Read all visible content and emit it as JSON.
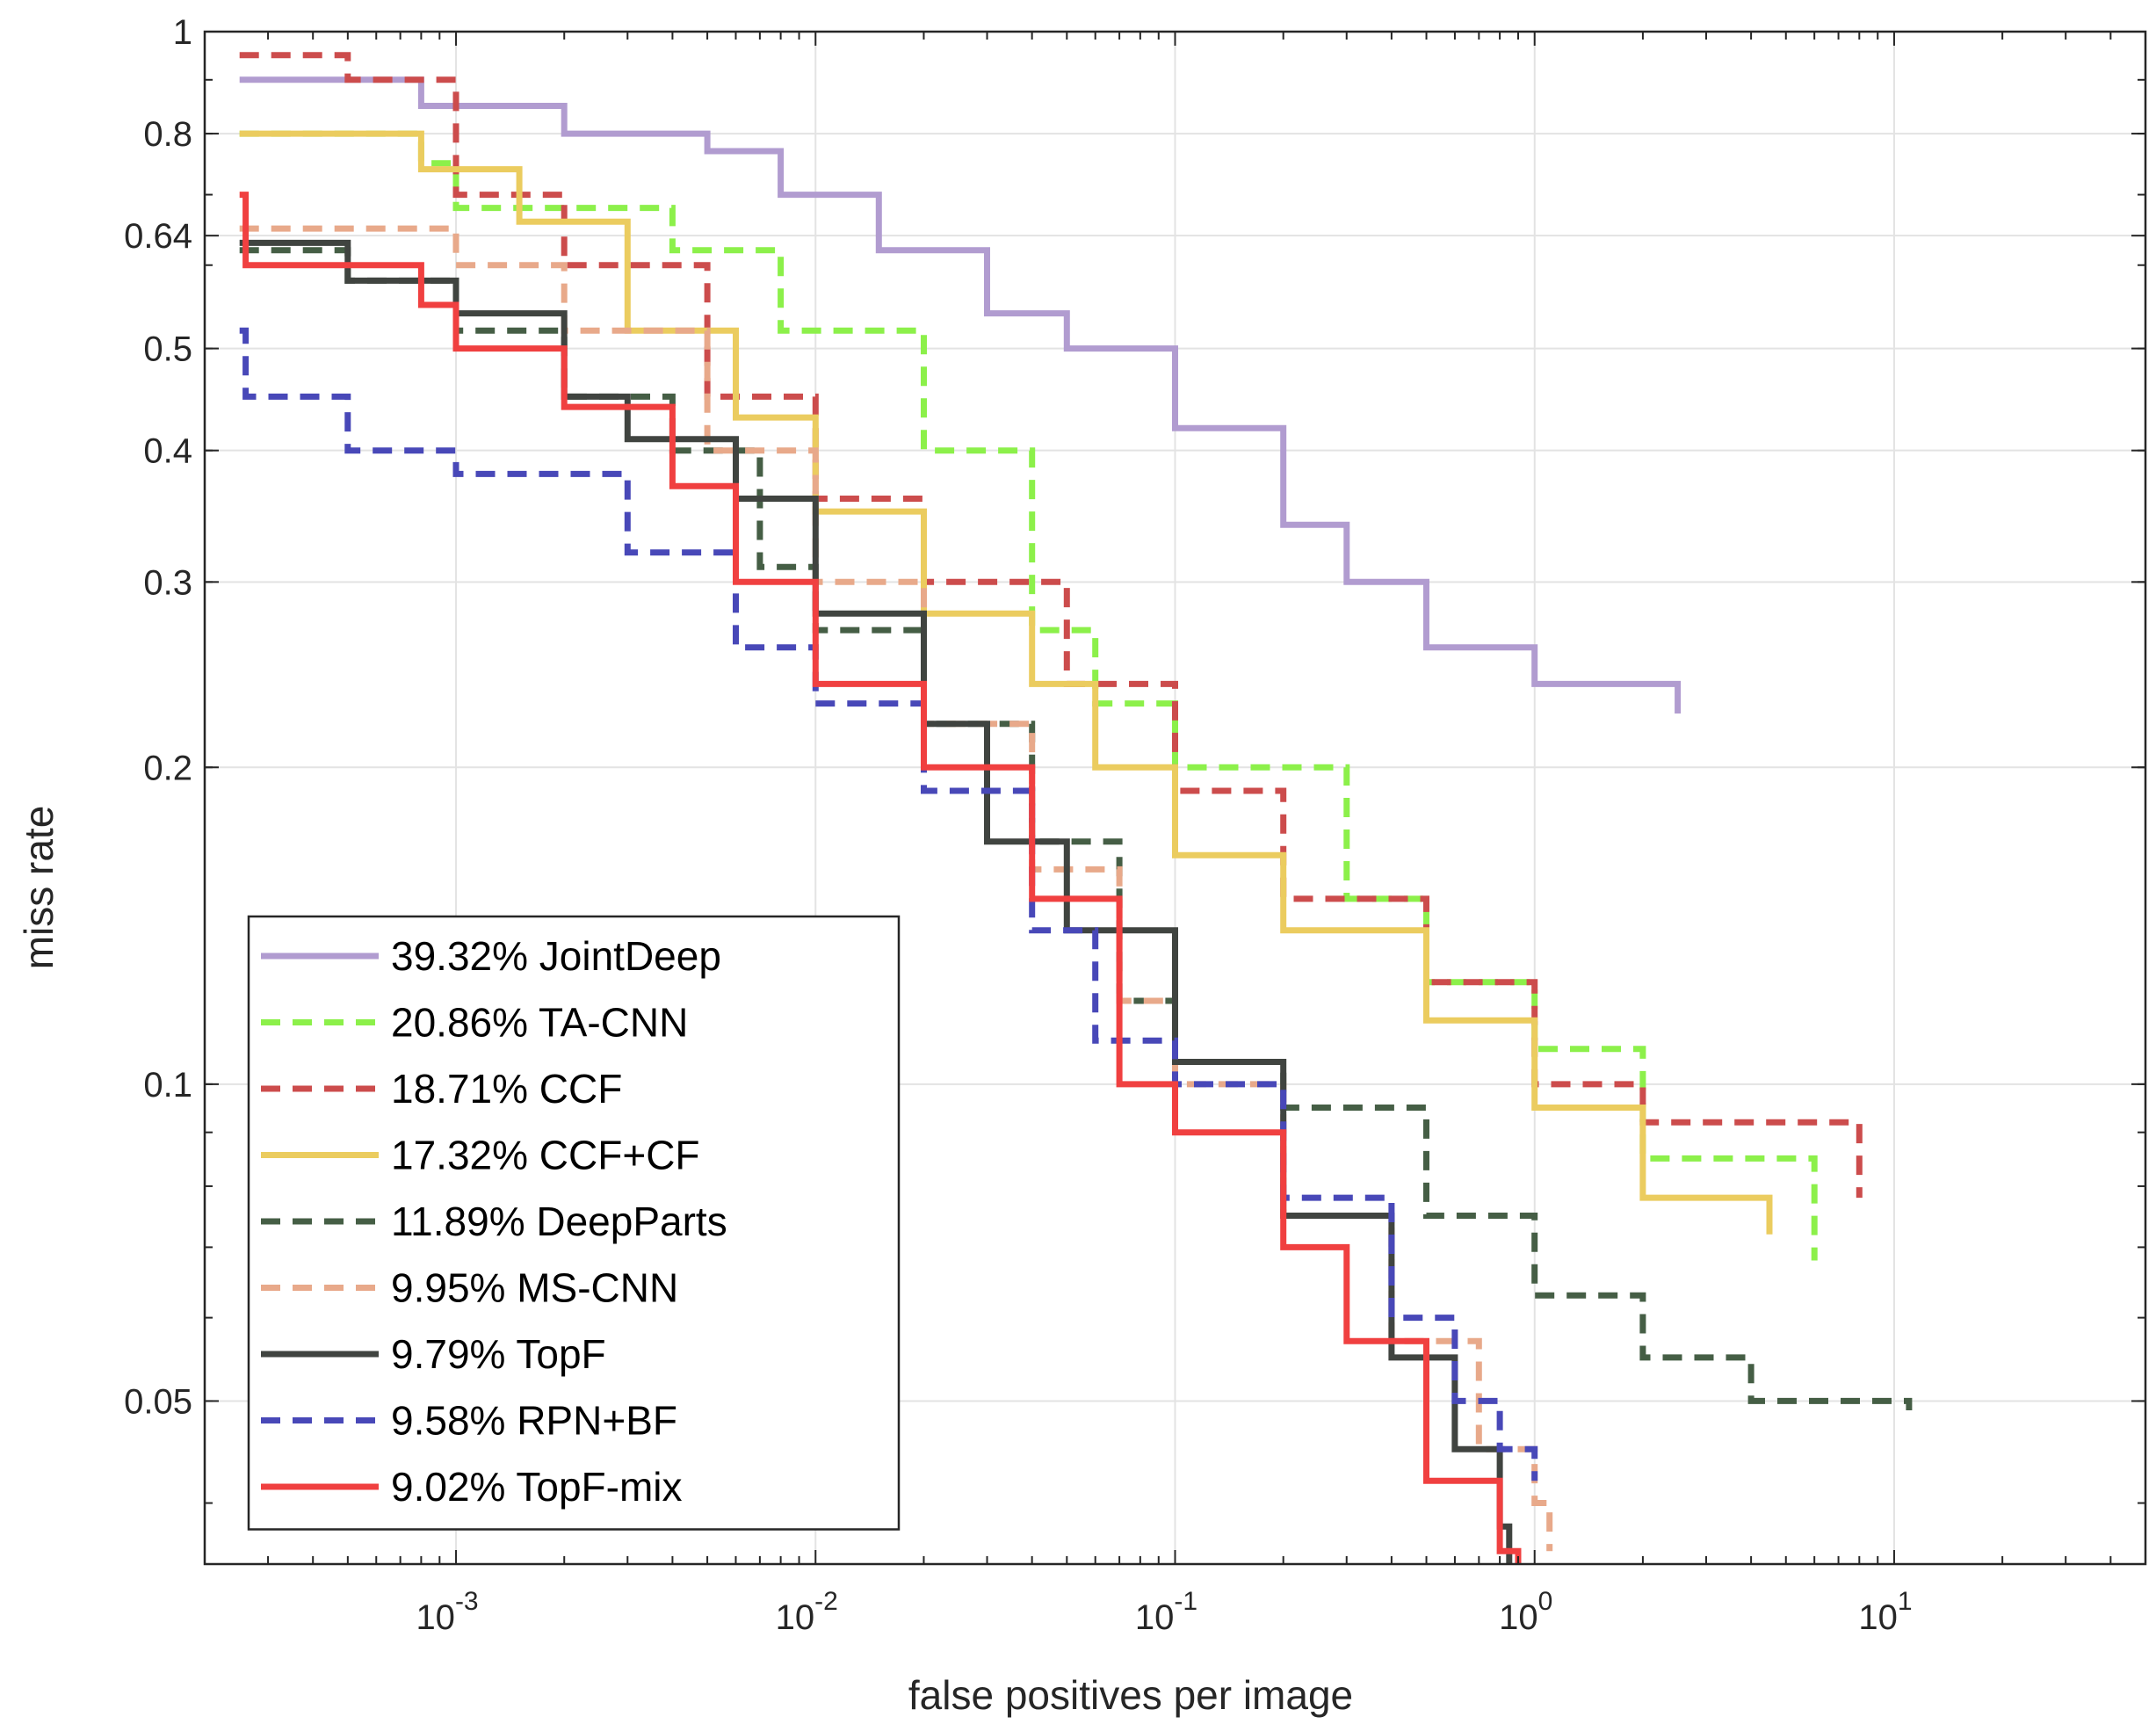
{
  "chart_data": {
    "type": "line",
    "scale": {
      "x": "log",
      "y": "log"
    },
    "xlabel": "false positives per image",
    "ylabel": "miss rate",
    "xlim": [
      0.0002,
      50
    ],
    "ylim": [
      0.035,
      1
    ],
    "x_ticks": [
      {
        "value": 0.001,
        "base": "10",
        "exp": "-3"
      },
      {
        "value": 0.01,
        "base": "10",
        "exp": "-2"
      },
      {
        "value": 0.1,
        "base": "10",
        "exp": "-1"
      },
      {
        "value": 1,
        "base": "10",
        "exp": "0"
      },
      {
        "value": 10,
        "base": "10",
        "exp": "1"
      }
    ],
    "y_ticks": [
      {
        "value": 1,
        "label": "1"
      },
      {
        "value": 0.8,
        "label": "0.8"
      },
      {
        "value": 0.64,
        "label": "0.64"
      },
      {
        "value": 0.5,
        "label": "0.5"
      },
      {
        "value": 0.4,
        "label": "0.4"
      },
      {
        "value": 0.3,
        "label": "0.3"
      },
      {
        "value": 0.2,
        "label": "0.2"
      },
      {
        "value": 0.1,
        "label": "0.1"
      },
      {
        "value": 0.05,
        "label": "0.05"
      }
    ],
    "grid": true,
    "legend_position": "bottom-left",
    "series": [
      {
        "name": "39.32% JointDeep",
        "color": "#b19cd0",
        "dash": "solid",
        "points": [
          [
            0.00025,
            0.9
          ],
          [
            0.0008,
            0.85
          ],
          [
            0.002,
            0.8
          ],
          [
            0.005,
            0.77
          ],
          [
            0.008,
            0.7
          ],
          [
            0.015,
            0.62
          ],
          [
            0.03,
            0.54
          ],
          [
            0.05,
            0.5
          ],
          [
            0.1,
            0.42
          ],
          [
            0.2,
            0.34
          ],
          [
            0.3,
            0.3
          ],
          [
            0.5,
            0.26
          ],
          [
            1,
            0.24
          ],
          [
            2.5,
            0.225
          ]
        ]
      },
      {
        "name": "20.86% TA-CNN",
        "color": "#8cf04a",
        "dash": "dash",
        "points": [
          [
            0.00025,
            0.8
          ],
          [
            0.0008,
            0.75
          ],
          [
            0.001,
            0.68
          ],
          [
            0.004,
            0.62
          ],
          [
            0.008,
            0.52
          ],
          [
            0.02,
            0.4
          ],
          [
            0.04,
            0.27
          ],
          [
            0.06,
            0.23
          ],
          [
            0.1,
            0.2
          ],
          [
            0.3,
            0.15
          ],
          [
            0.5,
            0.125
          ],
          [
            1,
            0.108
          ],
          [
            2,
            0.085
          ],
          [
            6,
            0.068
          ]
        ]
      },
      {
        "name": "18.71% CCF",
        "color": "#cc4c4c",
        "dash": "dash",
        "points": [
          [
            0.00025,
            0.95
          ],
          [
            0.0005,
            0.9
          ],
          [
            0.001,
            0.7
          ],
          [
            0.002,
            0.6
          ],
          [
            0.005,
            0.45
          ],
          [
            0.01,
            0.36
          ],
          [
            0.02,
            0.3
          ],
          [
            0.05,
            0.24
          ],
          [
            0.1,
            0.19
          ],
          [
            0.2,
            0.15
          ],
          [
            0.5,
            0.125
          ],
          [
            1,
            0.1
          ],
          [
            2,
            0.092
          ],
          [
            8,
            0.078
          ]
        ]
      },
      {
        "name": "17.32% CCF+CF",
        "color": "#ebcc5f",
        "dash": "solid",
        "points": [
          [
            0.00025,
            0.8
          ],
          [
            0.0008,
            0.74
          ],
          [
            0.0015,
            0.66
          ],
          [
            0.003,
            0.52
          ],
          [
            0.006,
            0.43
          ],
          [
            0.01,
            0.35
          ],
          [
            0.02,
            0.28
          ],
          [
            0.04,
            0.24
          ],
          [
            0.06,
            0.2
          ],
          [
            0.1,
            0.165
          ],
          [
            0.2,
            0.14
          ],
          [
            0.5,
            0.115
          ],
          [
            1,
            0.095
          ],
          [
            2,
            0.078
          ],
          [
            4.5,
            0.072
          ]
        ]
      },
      {
        "name": "11.89% DeepParts",
        "color": "#455e45",
        "dash": "dash",
        "points": [
          [
            0.00025,
            0.62
          ],
          [
            0.0005,
            0.58
          ],
          [
            0.001,
            0.52
          ],
          [
            0.002,
            0.45
          ],
          [
            0.004,
            0.4
          ],
          [
            0.007,
            0.31
          ],
          [
            0.01,
            0.27
          ],
          [
            0.02,
            0.22
          ],
          [
            0.04,
            0.17
          ],
          [
            0.07,
            0.12
          ],
          [
            0.1,
            0.105
          ],
          [
            0.2,
            0.095
          ],
          [
            0.5,
            0.075
          ],
          [
            1,
            0.063
          ],
          [
            2,
            0.055
          ],
          [
            4,
            0.05
          ],
          [
            11,
            0.049
          ]
        ]
      },
      {
        "name": "9.95% MS-CNN",
        "color": "#e8a98a",
        "dash": "dash",
        "points": [
          [
            0.00025,
            0.65
          ],
          [
            0.001,
            0.6
          ],
          [
            0.002,
            0.52
          ],
          [
            0.005,
            0.4
          ],
          [
            0.01,
            0.3
          ],
          [
            0.02,
            0.22
          ],
          [
            0.04,
            0.16
          ],
          [
            0.07,
            0.12
          ],
          [
            0.1,
            0.1
          ],
          [
            0.2,
            0.075
          ],
          [
            0.4,
            0.057
          ],
          [
            0.7,
            0.045
          ],
          [
            1,
            0.04
          ],
          [
            1.1,
            0.036
          ]
        ]
      },
      {
        "name": "9.79% TopF",
        "color": "#404440",
        "dash": "solid",
        "points": [
          [
            0.00025,
            0.63
          ],
          [
            0.0005,
            0.58
          ],
          [
            0.001,
            0.54
          ],
          [
            0.002,
            0.45
          ],
          [
            0.003,
            0.41
          ],
          [
            0.006,
            0.36
          ],
          [
            0.01,
            0.28
          ],
          [
            0.02,
            0.22
          ],
          [
            0.03,
            0.17
          ],
          [
            0.05,
            0.14
          ],
          [
            0.1,
            0.105
          ],
          [
            0.2,
            0.075
          ],
          [
            0.4,
            0.055
          ],
          [
            0.6,
            0.045
          ],
          [
            0.8,
            0.038
          ],
          [
            0.85,
            0.035
          ]
        ]
      },
      {
        "name": "9.58% RPN+BF",
        "color": "#4848b8",
        "dash": "dash",
        "points": [
          [
            0.00025,
            0.52
          ],
          [
            0.00026,
            0.45
          ],
          [
            0.0005,
            0.4
          ],
          [
            0.001,
            0.38
          ],
          [
            0.003,
            0.32
          ],
          [
            0.006,
            0.26
          ],
          [
            0.01,
            0.23
          ],
          [
            0.02,
            0.19
          ],
          [
            0.04,
            0.14
          ],
          [
            0.06,
            0.11
          ],
          [
            0.1,
            0.1
          ],
          [
            0.2,
            0.078
          ],
          [
            0.4,
            0.06
          ],
          [
            0.6,
            0.05
          ],
          [
            0.8,
            0.045
          ],
          [
            1,
            0.042
          ]
        ]
      },
      {
        "name": "9.02% TopF-mix",
        "color": "#f04040",
        "dash": "solid",
        "points": [
          [
            0.00025,
            0.7
          ],
          [
            0.00026,
            0.6
          ],
          [
            0.0008,
            0.55
          ],
          [
            0.001,
            0.5
          ],
          [
            0.002,
            0.44
          ],
          [
            0.004,
            0.37
          ],
          [
            0.006,
            0.3
          ],
          [
            0.01,
            0.24
          ],
          [
            0.02,
            0.2
          ],
          [
            0.04,
            0.15
          ],
          [
            0.07,
            0.1
          ],
          [
            0.1,
            0.09
          ],
          [
            0.2,
            0.07
          ],
          [
            0.3,
            0.057
          ],
          [
            0.5,
            0.042
          ],
          [
            0.8,
            0.036
          ],
          [
            0.9,
            0.035
          ]
        ]
      }
    ]
  }
}
